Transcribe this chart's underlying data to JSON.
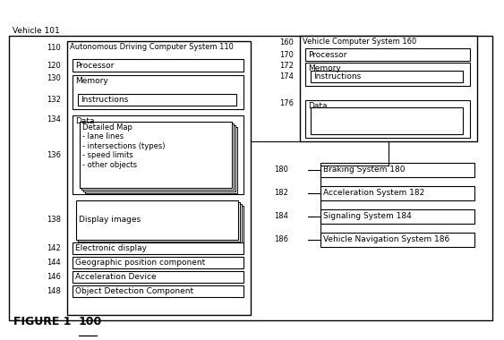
{
  "title": "FIGURE 1",
  "title_ref": "100",
  "bg_color": "#ffffff",
  "outer_label": "Vehicle 101",
  "font_size": 6.5,
  "ref_font_size": 6.0,
  "labels_left": [
    {
      "ref": "110",
      "text": "Autonomous Driving Computer System 110"
    },
    {
      "ref": "120",
      "text": "Processor"
    },
    {
      "ref": "130",
      "text": "Memory"
    },
    {
      "ref": "132",
      "text": "Instructions"
    },
    {
      "ref": "134",
      "text": "Data"
    },
    {
      "ref": "136",
      "text": "Detailed Map\n- lane lines\n- intersections (types)\n- speed limits\n- other objects"
    },
    {
      "ref": "138",
      "text": "Display images"
    },
    {
      "ref": "142",
      "text": "Electronic display"
    },
    {
      "ref": "144",
      "text": "Geographic position component"
    },
    {
      "ref": "146",
      "text": "Acceleration Device"
    },
    {
      "ref": "148",
      "text": "Object Detection Component"
    }
  ],
  "labels_right_top": [
    {
      "ref": "160",
      "text": "Vehicle Computer System 160"
    },
    {
      "ref": "170",
      "text": "Processor"
    },
    {
      "ref": "172",
      "text": "Memory"
    },
    {
      "ref": "174",
      "text": "Instructions"
    },
    {
      "ref": "176",
      "text": "Data"
    }
  ],
  "labels_right_bottom": [
    {
      "ref": "180",
      "text": "Braking System 180"
    },
    {
      "ref": "182",
      "text": "Acceleration System 182"
    },
    {
      "ref": "184",
      "text": "Signaling System 184"
    },
    {
      "ref": "186",
      "text": "Vehicle Navigation System 186"
    }
  ]
}
